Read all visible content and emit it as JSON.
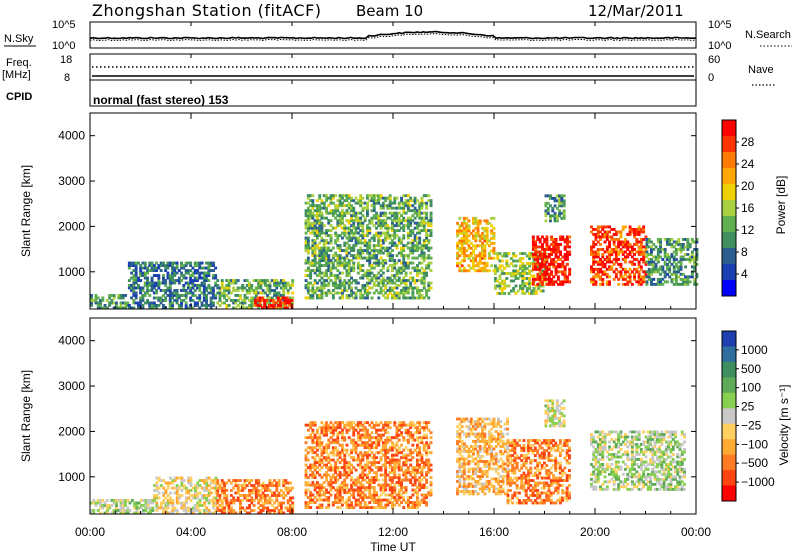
{
  "header": {
    "station": "Zhongshan Station (fitACF)",
    "beam": "Beam 10",
    "date": "12/Mar/2011"
  },
  "top_panels": {
    "nsky": {
      "label": "N.Sky",
      "tick_top": "10^5",
      "tick_bottom": "10^0"
    },
    "nsearch": {
      "label": "N.Search",
      "tick_top": "10^5",
      "tick_bottom": "10^0"
    },
    "freq": {
      "label_line1": "Freq.",
      "label_line2": "[MHz]",
      "tick_top": "18",
      "tick_bottom": "8"
    },
    "nave": {
      "label": "Nave",
      "tick_top": "60",
      "tick_bottom": "0"
    },
    "cpid": {
      "label": "CPID",
      "value": "normal (fast stereo) 153"
    }
  },
  "colorbars": {
    "power": {
      "title": "Power [dB]",
      "ticks": [
        "28",
        "24",
        "20",
        "16",
        "12",
        "8",
        "4"
      ],
      "colors": [
        "#ff0000",
        "#ff3300",
        "#ff7a00",
        "#ffa800",
        "#f0d000",
        "#a8d040",
        "#5fae4f",
        "#3f8f5f",
        "#2a5f8f",
        "#1a3fb0",
        "#0000ff"
      ]
    },
    "velocity": {
      "title": "Velocity [m s⁻¹]",
      "ticks": [
        "1000",
        "500",
        "100",
        "25",
        "−25",
        "−100",
        "−500",
        "−1000"
      ],
      "colors": [
        "#1f3fb0",
        "#2f6fa0",
        "#3e8f5f",
        "#5faa58",
        "#88d050",
        "#c8c8c8",
        "#ffd060",
        "#ffaa33",
        "#ff7a22",
        "#ff4411",
        "#ff0000"
      ]
    }
  },
  "chart_data": [
    {
      "type": "heatmap",
      "title": "",
      "ylabel": "Slant Range [km]",
      "ylim": [
        180,
        4500
      ],
      "yticks": [
        "1000",
        "2000",
        "3000",
        "4000"
      ],
      "x_ticks": [
        "00:00",
        "04:00",
        "08:00",
        "12:00",
        "16:00",
        "20:00",
        "00:00"
      ],
      "xlim": [
        "00:00",
        "24:00"
      ],
      "quantity": "Power [dB]",
      "value_range": [
        0,
        30
      ],
      "regions": [
        {
          "t_start": 0.0,
          "t_end": 1.5,
          "range_min": 180,
          "range_max": 500,
          "value": 10
        },
        {
          "t_start": 1.5,
          "t_end": 5.0,
          "range_min": 180,
          "range_max": 1200,
          "value": 8
        },
        {
          "t_start": 5.0,
          "t_end": 8.0,
          "range_min": 180,
          "range_max": 800,
          "value": 12
        },
        {
          "t_start": 6.5,
          "t_end": 8.0,
          "range_min": 180,
          "range_max": 450,
          "value": 28
        },
        {
          "t_start": 8.5,
          "t_end": 13.5,
          "range_min": 400,
          "range_max": 2700,
          "value": 12
        },
        {
          "t_start": 14.5,
          "t_end": 16.0,
          "range_min": 1000,
          "range_max": 2200,
          "value": 20
        },
        {
          "t_start": 16.0,
          "t_end": 18.0,
          "range_min": 500,
          "range_max": 1400,
          "value": 14
        },
        {
          "t_start": 17.5,
          "t_end": 19.0,
          "range_min": 700,
          "range_max": 1800,
          "value": 28
        },
        {
          "t_start": 18.0,
          "t_end": 18.8,
          "range_min": 2100,
          "range_max": 2700,
          "value": 10
        },
        {
          "t_start": 19.8,
          "t_end": 22.0,
          "range_min": 700,
          "range_max": 2000,
          "value": 26
        },
        {
          "t_start": 22.0,
          "t_end": 24.0,
          "range_min": 700,
          "range_max": 1700,
          "value": 10
        }
      ]
    },
    {
      "type": "heatmap",
      "title": "",
      "xlabel": "Time UT",
      "ylabel": "Slant Range [km]",
      "ylim": [
        180,
        4500
      ],
      "yticks": [
        "1000",
        "2000",
        "3000",
        "4000"
      ],
      "x_ticks": [
        "00:00",
        "04:00",
        "08:00",
        "12:00",
        "16:00",
        "20:00",
        "00:00"
      ],
      "xlim": [
        "00:00",
        "24:00"
      ],
      "quantity": "Velocity [m s⁻¹]",
      "value_range": [
        -1000,
        1000
      ],
      "regions": [
        {
          "t_start": 0.0,
          "t_end": 2.5,
          "range_min": 180,
          "range_max": 500,
          "value": 100
        },
        {
          "t_start": 2.5,
          "t_end": 5.0,
          "range_min": 180,
          "range_max": 1000,
          "value": -100
        },
        {
          "t_start": 5.0,
          "t_end": 8.0,
          "range_min": 180,
          "range_max": 900,
          "value": -500
        },
        {
          "t_start": 8.5,
          "t_end": 13.5,
          "range_min": 300,
          "range_max": 2200,
          "value": -500
        },
        {
          "t_start": 14.5,
          "t_end": 16.5,
          "range_min": 600,
          "range_max": 2300,
          "value": -300
        },
        {
          "t_start": 16.5,
          "t_end": 19.0,
          "range_min": 400,
          "range_max": 1800,
          "value": -500
        },
        {
          "t_start": 18.0,
          "t_end": 18.8,
          "range_min": 2100,
          "range_max": 2700,
          "value": 0
        },
        {
          "t_start": 19.8,
          "t_end": 23.5,
          "range_min": 700,
          "range_max": 2000,
          "value": 100
        }
      ]
    }
  ]
}
